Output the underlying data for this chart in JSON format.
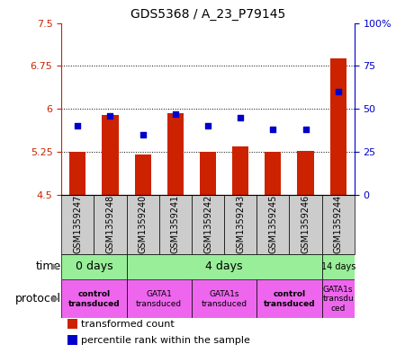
{
  "title": "GDS5368 / A_23_P79145",
  "samples": [
    "GSM1359247",
    "GSM1359248",
    "GSM1359240",
    "GSM1359241",
    "GSM1359242",
    "GSM1359243",
    "GSM1359245",
    "GSM1359246",
    "GSM1359244"
  ],
  "transformed_count": [
    5.25,
    5.9,
    5.2,
    5.93,
    5.25,
    5.35,
    5.25,
    5.27,
    6.88
  ],
  "percentile_rank": [
    40,
    46,
    35,
    47,
    40,
    45,
    38,
    38,
    60
  ],
  "bar_bottom": 4.5,
  "ylim_left": [
    4.5,
    7.5
  ],
  "ylim_right": [
    0,
    100
  ],
  "yticks_left": [
    4.5,
    5.25,
    6.0,
    6.75,
    7.5
  ],
  "ytick_labels_left": [
    "4.5",
    "5.25",
    "6",
    "6.75",
    "7.5"
  ],
  "yticks_right": [
    0,
    25,
    50,
    75,
    100
  ],
  "ytick_labels_right": [
    "0",
    "25",
    "50",
    "75",
    "100%"
  ],
  "hlines": [
    5.25,
    6.0,
    6.75
  ],
  "bar_color": "#cc2200",
  "dot_color": "#0000cc",
  "bar_width": 0.5,
  "time_groups": [
    {
      "label": "0 days",
      "start": 0,
      "end": 2,
      "color": "#99ee99"
    },
    {
      "label": "4 days",
      "start": 2,
      "end": 8,
      "color": "#99ee99"
    },
    {
      "label": "14 days",
      "start": 8,
      "end": 9,
      "color": "#99ee99"
    }
  ],
  "protocol_groups": [
    {
      "label": "control\ntransduced",
      "start": 0,
      "end": 2,
      "color": "#ee66ee",
      "bold": true
    },
    {
      "label": "GATA1\ntransduced",
      "start": 2,
      "end": 4,
      "color": "#ee66ee",
      "bold": false
    },
    {
      "label": "GATA1s\ntransduced",
      "start": 4,
      "end": 6,
      "color": "#ee66ee",
      "bold": false
    },
    {
      "label": "control\ntransduced",
      "start": 6,
      "end": 8,
      "color": "#ee66ee",
      "bold": true
    },
    {
      "label": "GATA1s\ntransdu\nced",
      "start": 8,
      "end": 9,
      "color": "#ee66ee",
      "bold": false
    }
  ],
  "legend_items": [
    {
      "color": "#cc2200",
      "label": "transformed count"
    },
    {
      "color": "#0000cc",
      "label": "percentile rank within the sample"
    }
  ],
  "sample_box_color": "#cccccc",
  "left_axis_color": "#cc2200",
  "right_axis_color": "#0000cc",
  "n_samples": 9
}
